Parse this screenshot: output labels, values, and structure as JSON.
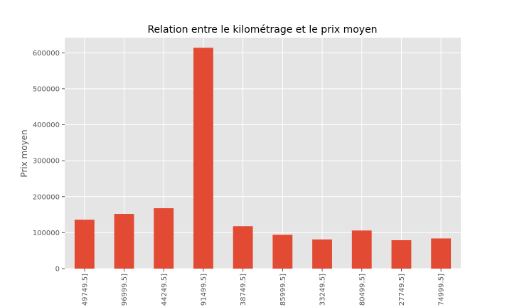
{
  "chart_data": {
    "type": "bar",
    "title": "Relation entre le kilométrage et le prix moyen",
    "xlabel": "",
    "ylabel": "Prix moyen",
    "categories": [
      "49749.5]",
      "96999.5]",
      "44249.5]",
      "91499.5]",
      "38749.5]",
      "85999.5]",
      "33249.5]",
      "80499.5]",
      "27749.5]",
      "74999.5]"
    ],
    "values": [
      136000,
      152000,
      168000,
      614000,
      118000,
      94000,
      81000,
      106000,
      79000,
      84000
    ],
    "ylim": [
      0,
      642000
    ],
    "yticks": [
      0,
      100000,
      200000,
      300000,
      400000,
      500000,
      600000
    ],
    "ytick_labels": [
      "0",
      "100000",
      "200000",
      "300000",
      "400000",
      "500000",
      "600000"
    ],
    "grid": true,
    "bar_color": "#e24a33",
    "background_color": "#e5e5e5",
    "grid_color": "#ffffff"
  }
}
